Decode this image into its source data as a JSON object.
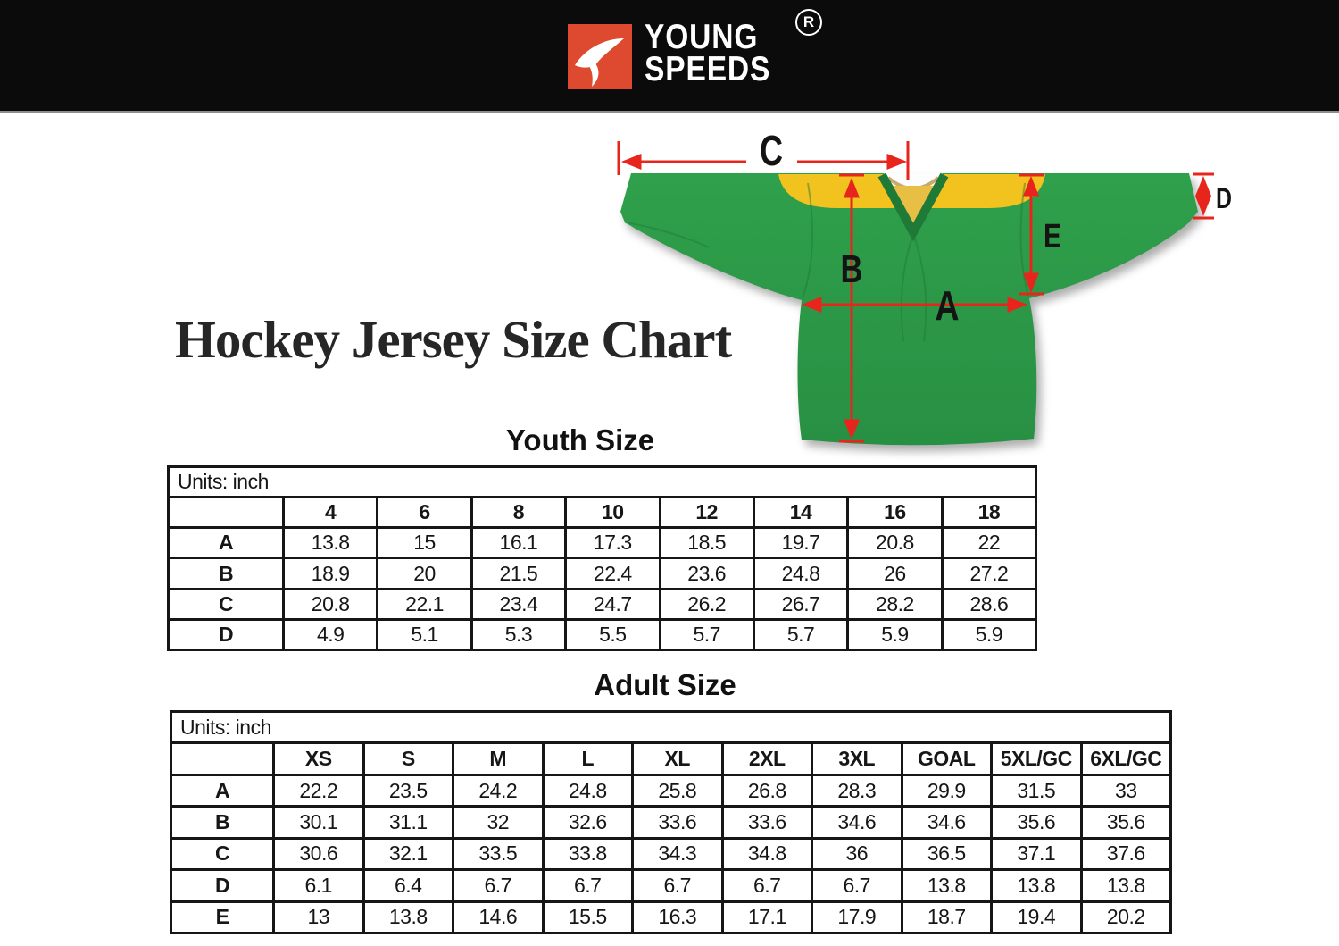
{
  "header": {
    "brand_line1": "YOUNG",
    "brand_line2": "SPEEDS",
    "registered_mark": "®"
  },
  "title": "Hockey Jersey Size Chart",
  "diagram": {
    "labels": {
      "A": "A",
      "B": "B",
      "C": "C",
      "D": "D",
      "E": "E"
    },
    "colors": {
      "jersey_green": "#2c9a46",
      "jersey_yellow": "#f2c21e",
      "collar_green": "#1e7a36",
      "arrow_red": "#e8251c",
      "logo_red": "#de4a30",
      "header_bg": "#0b0b0b"
    }
  },
  "chart_data": [
    {
      "type": "table",
      "title": "Youth Size",
      "units_label": "Units: inch",
      "columns": [
        "4",
        "6",
        "8",
        "10",
        "12",
        "14",
        "16",
        "18"
      ],
      "rows": [
        {
          "label": "A",
          "values": [
            "13.8",
            "15",
            "16.1",
            "17.3",
            "18.5",
            "19.7",
            "20.8",
            "22"
          ]
        },
        {
          "label": "B",
          "values": [
            "18.9",
            "20",
            "21.5",
            "22.4",
            "23.6",
            "24.8",
            "26",
            "27.2"
          ]
        },
        {
          "label": "C",
          "values": [
            "20.8",
            "22.1",
            "23.4",
            "24.7",
            "26.2",
            "26.7",
            "28.2",
            "28.6"
          ]
        },
        {
          "label": "D",
          "values": [
            "4.9",
            "5.1",
            "5.3",
            "5.5",
            "5.7",
            "5.7",
            "5.9",
            "5.9"
          ]
        }
      ]
    },
    {
      "type": "table",
      "title": "Adult Size",
      "units_label": "Units: inch",
      "columns": [
        "XS",
        "S",
        "M",
        "L",
        "XL",
        "2XL",
        "3XL",
        "GOAL",
        "5XL/GC",
        "6XL/GC"
      ],
      "rows": [
        {
          "label": "A",
          "values": [
            "22.2",
            "23.5",
            "24.2",
            "24.8",
            "25.8",
            "26.8",
            "28.3",
            "29.9",
            "31.5",
            "33"
          ]
        },
        {
          "label": "B",
          "values": [
            "30.1",
            "31.1",
            "32",
            "32.6",
            "33.6",
            "33.6",
            "34.6",
            "34.6",
            "35.6",
            "35.6"
          ]
        },
        {
          "label": "C",
          "values": [
            "30.6",
            "32.1",
            "33.5",
            "33.8",
            "34.3",
            "34.8",
            "36",
            "36.5",
            "37.1",
            "37.6"
          ]
        },
        {
          "label": "D",
          "values": [
            "6.1",
            "6.4",
            "6.7",
            "6.7",
            "6.7",
            "6.7",
            "6.7",
            "13.8",
            "13.8",
            "13.8"
          ]
        },
        {
          "label": "E",
          "values": [
            "13",
            "13.8",
            "14.6",
            "15.5",
            "16.3",
            "17.1",
            "17.9",
            "18.7",
            "19.4",
            "20.2"
          ]
        }
      ]
    }
  ]
}
